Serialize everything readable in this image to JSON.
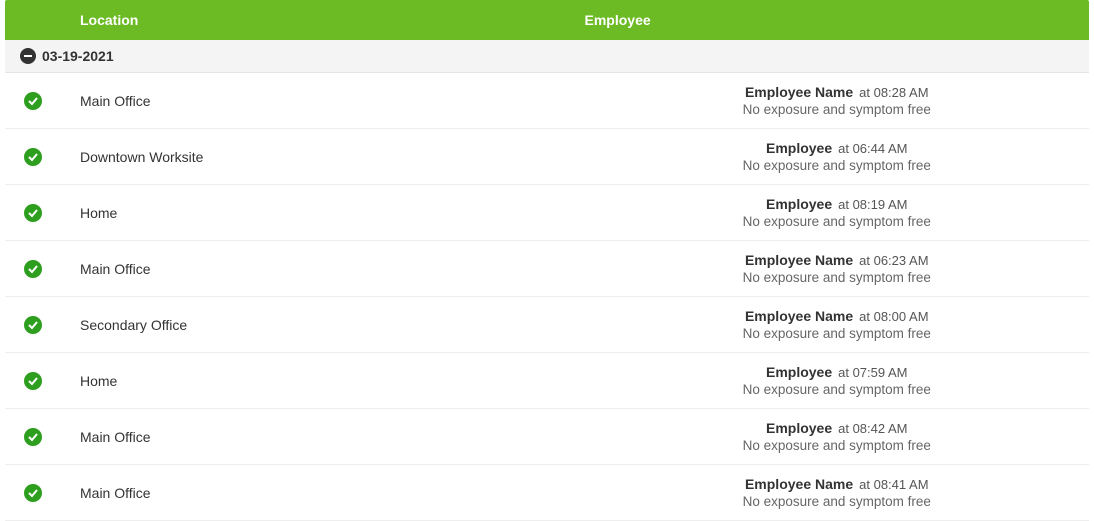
{
  "header": {
    "location_label": "Location",
    "employee_label": "Employee"
  },
  "date_group": {
    "date": "03-19-2021"
  },
  "status_text": "No exposure and symptom free",
  "time_prefix": "at ",
  "rows": [
    {
      "location": "Main Office",
      "employee": "Employee Name",
      "time": "08:28 AM"
    },
    {
      "location": "Downtown Worksite",
      "employee": "Employee",
      "time": "06:44 AM"
    },
    {
      "location": "Home",
      "employee": "Employee",
      "time": "08:19 AM"
    },
    {
      "location": "Main Office",
      "employee": "Employee Name",
      "time": "06:23 AM"
    },
    {
      "location": "Secondary Office",
      "employee": "Employee Name",
      "time": "08:00 AM"
    },
    {
      "location": "Home",
      "employee": "Employee",
      "time": "07:59 AM"
    },
    {
      "location": "Main Office",
      "employee": "Employee",
      "time": "08:42 AM"
    },
    {
      "location": "Main Office",
      "employee": "Employee Name",
      "time": "08:41 AM"
    }
  ],
  "colors": {
    "header_bg": "#6cbb25",
    "status_ok": "#2e9e1f"
  }
}
